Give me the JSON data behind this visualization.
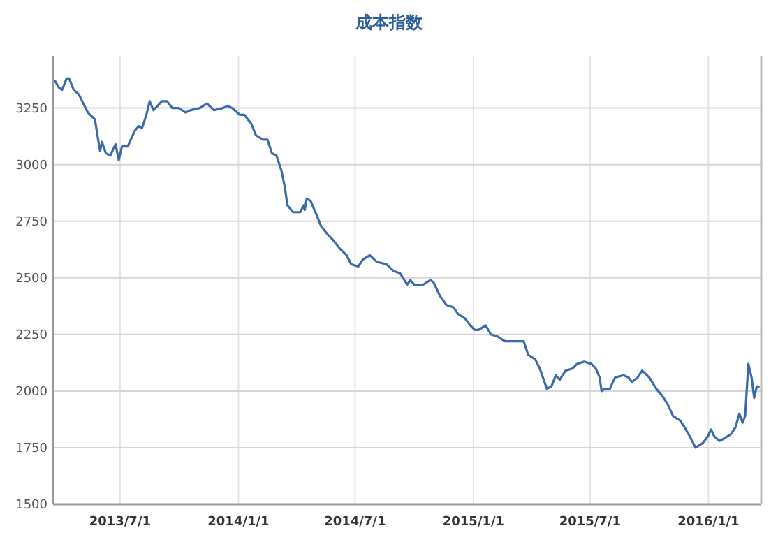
{
  "chart_data": {
    "type": "line",
    "title": "成本指数",
    "x": [
      "2013-03-19",
      "2013-03-22",
      "2013-03-28",
      "2013-04-02",
      "2013-04-09",
      "2013-04-13",
      "2013-04-20",
      "2013-04-28",
      "2013-05-05",
      "2013-05-12",
      "2013-05-23",
      "2013-05-28",
      "2013-05-31",
      "2013-06-03",
      "2013-06-09",
      "2013-06-16",
      "2013-06-24",
      "2013-06-29",
      "2013-07-04",
      "2013-07-13",
      "2013-07-24",
      "2013-07-30",
      "2013-08-04",
      "2013-08-11",
      "2013-08-16",
      "2013-08-22",
      "2013-09-04",
      "2013-09-12",
      "2013-09-20",
      "2013-09-30",
      "2013-10-11",
      "2013-10-18",
      "2013-11-02",
      "2013-11-13",
      "2013-11-24",
      "2013-12-08",
      "2013-12-15",
      "2013-12-22",
      "2014-01-03",
      "2014-01-10",
      "2014-01-21",
      "2014-01-28",
      "2014-02-08",
      "2014-02-15",
      "2014-02-22",
      "2014-03-01",
      "2014-03-09",
      "2014-03-14",
      "2014-03-18",
      "2014-03-27",
      "2014-04-07",
      "2014-04-12",
      "2014-04-14",
      "2014-04-17",
      "2014-04-23",
      "2014-05-02",
      "2014-05-09",
      "2014-05-20",
      "2014-05-27",
      "2014-06-07",
      "2014-06-18",
      "2014-06-25",
      "2014-07-06",
      "2014-07-13",
      "2014-07-24",
      "2014-08-04",
      "2014-08-19",
      "2014-08-30",
      "2014-09-09",
      "2014-09-20",
      "2014-09-25",
      "2014-10-01",
      "2014-10-15",
      "2014-10-26",
      "2014-10-31",
      "2014-11-10",
      "2014-11-20",
      "2014-12-01",
      "2014-12-08",
      "2014-12-19",
      "2014-12-27",
      "2015-01-03",
      "2015-01-09",
      "2015-01-20",
      "2015-01-28",
      "2015-02-08",
      "2015-02-19",
      "2015-03-20",
      "2015-03-27",
      "2015-04-07",
      "2015-04-14",
      "2015-04-25",
      "2015-05-02",
      "2015-05-09",
      "2015-05-15",
      "2015-05-24",
      "2015-06-04",
      "2015-06-11",
      "2015-06-22",
      "2015-07-03",
      "2015-07-10",
      "2015-07-16",
      "2015-07-19",
      "2015-07-24",
      "2015-08-01",
      "2015-08-04",
      "2015-08-09",
      "2015-08-22",
      "2015-08-30",
      "2015-09-04",
      "2015-09-13",
      "2015-09-20",
      "2015-10-01",
      "2015-10-12",
      "2015-10-21",
      "2015-10-30",
      "2015-11-07",
      "2015-11-18",
      "2015-11-25",
      "2015-12-03",
      "2015-12-12",
      "2015-12-23",
      "2015-12-31",
      "2016-01-05",
      "2016-01-10",
      "2016-01-18",
      "2016-01-25",
      "2016-02-05",
      "2016-02-12",
      "2016-02-18",
      "2016-02-23",
      "2016-02-27",
      "2016-03-03",
      "2016-03-08",
      "2016-03-12",
      "2016-03-16",
      "2016-03-19"
    ],
    "series": [
      {
        "color": "#3a6aa8",
        "values": [
          3360,
          3370,
          3340,
          3330,
          3380,
          3380,
          3330,
          3310,
          3270,
          3230,
          3200,
          3110,
          3060,
          3100,
          3050,
          3040,
          3090,
          3020,
          3080,
          3080,
          3150,
          3170,
          3160,
          3220,
          3280,
          3240,
          3280,
          3280,
          3250,
          3250,
          3230,
          3240,
          3250,
          3270,
          3240,
          3250,
          3260,
          3250,
          3220,
          3220,
          3180,
          3130,
          3110,
          3110,
          3050,
          3040,
          2970,
          2900,
          2820,
          2790,
          2790,
          2820,
          2800,
          2850,
          2840,
          2780,
          2730,
          2690,
          2670,
          2630,
          2600,
          2560,
          2550,
          2580,
          2600,
          2570,
          2560,
          2530,
          2520,
          2470,
          2490,
          2470,
          2470,
          2490,
          2480,
          2420,
          2380,
          2370,
          2340,
          2320,
          2290,
          2270,
          2270,
          2290,
          2250,
          2240,
          2220,
          2220,
          2160,
          2140,
          2100,
          2010,
          2020,
          2070,
          2050,
          2090,
          2100,
          2120,
          2130,
          2120,
          2100,
          2060,
          2000,
          2010,
          2010,
          2030,
          2060,
          2070,
          2060,
          2040,
          2060,
          2090,
          2060,
          2010,
          1980,
          1940,
          1890,
          1870,
          1840,
          1800,
          1750,
          1770,
          1800,
          1830,
          1800,
          1780,
          1790,
          1810,
          1840,
          1900,
          1860,
          1890,
          2120,
          2060,
          1970,
          2020,
          2020
        ]
      }
    ],
    "xlim": [
      "2013-03-19",
      "2016-03-23"
    ],
    "xticks": [
      {
        "value": "2013-07-01",
        "label": "2013/7/1"
      },
      {
        "value": "2014-01-01",
        "label": "2014/1/1"
      },
      {
        "value": "2014-07-01",
        "label": "2014/7/1"
      },
      {
        "value": "2015-01-01",
        "label": "2015/1/1"
      },
      {
        "value": "2015-07-01",
        "label": "2015/7/1"
      },
      {
        "value": "2016-01-01",
        "label": "2016/1/1"
      }
    ],
    "ylim": [
      1500,
      3480
    ],
    "yticks": [
      1500,
      1750,
      2000,
      2250,
      2500,
      2750,
      3000,
      3250
    ],
    "grid": true,
    "marker": "none",
    "line_style": "solid"
  }
}
